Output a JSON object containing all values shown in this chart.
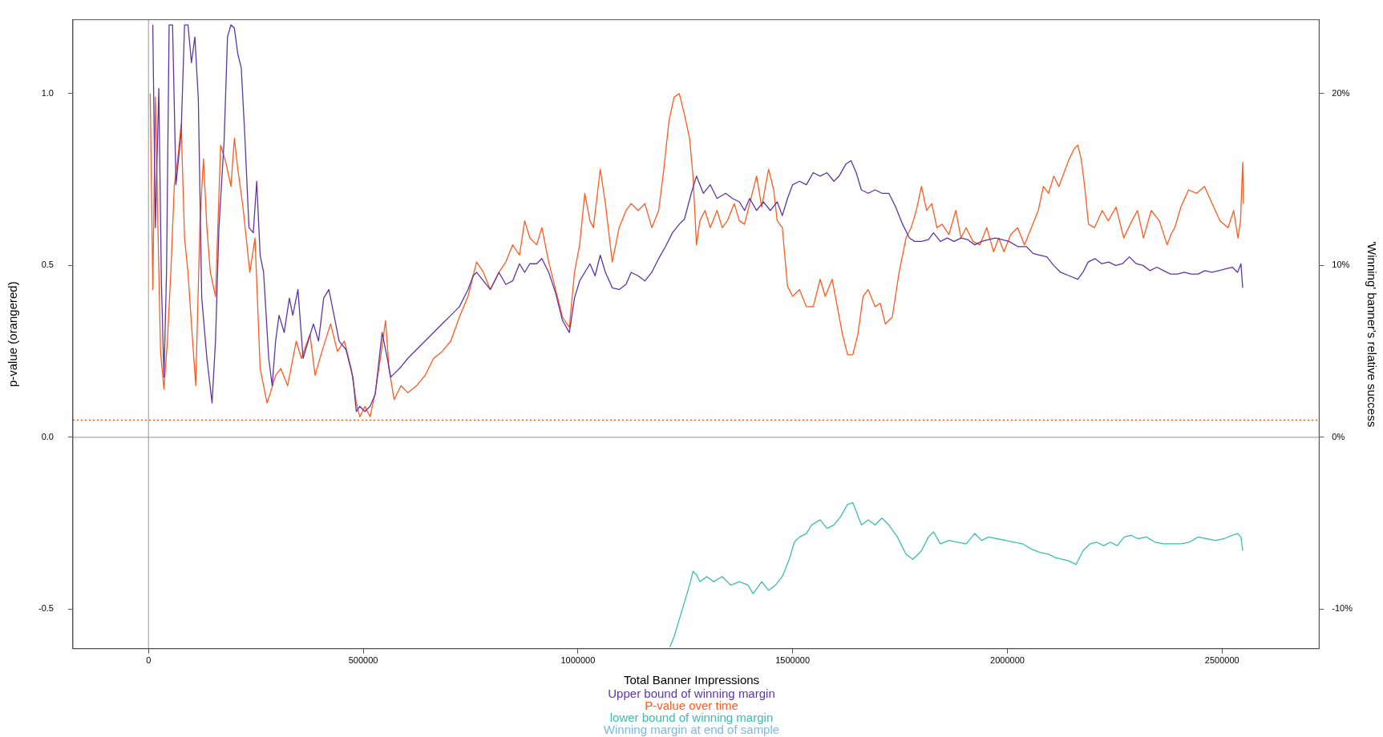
{
  "chart_data": {
    "type": "line",
    "xlabel": "Total Banner Impressions",
    "ylabel": "p-value (orangered)",
    "y2label": "'Winning' banner's relative success",
    "xlim": [
      -176000,
      2726000
    ],
    "xticks": [
      0,
      500000,
      1000000,
      1500000,
      2000000,
      2500000
    ],
    "ylim": [
      -0.615,
      1.215
    ],
    "yticks": [
      {
        "value": -0.5,
        "label": "-0.5"
      },
      {
        "value": 0,
        "label": "0.0"
      },
      {
        "value": 0.5,
        "label": "0.5"
      },
      {
        "value": 1,
        "label": "1.0"
      }
    ],
    "y2lim": [
      -12.3,
      24.3
    ],
    "y2ticks": [
      {
        "value": -10,
        "label": "-10%"
      },
      {
        "value": 0,
        "label": "0%"
      },
      {
        "value": 10,
        "label": "10%"
      },
      {
        "value": 20,
        "label": "20%"
      }
    ],
    "grid": false,
    "legend": "bottom",
    "marker": "none",
    "line_style": "solid",
    "ref_lines": [
      {
        "axis": "y",
        "value": 0.05,
        "color": "#ff4500",
        "line_style": "dotted"
      },
      {
        "axis": "x",
        "value": 0,
        "color": "#a8a8a8",
        "line_style": "solid"
      },
      {
        "axis": "y",
        "value": 0,
        "color": "#a8a8a8",
        "line_style": "solid"
      }
    ],
    "series": [
      {
        "name": "Upper bound of winning margin",
        "color": "#5e35a8",
        "axis": "y2",
        "x": [
          10000,
          16000,
          24000,
          30000,
          36000,
          42000,
          48000,
          56000,
          64000,
          76000,
          84000,
          92000,
          100000,
          108000,
          116000,
          124000,
          136000,
          148000,
          156000,
          164000,
          176000,
          184000,
          192000,
          200000,
          208000,
          216000,
          224000,
          234000,
          244000,
          252000,
          260000,
          268000,
          280000,
          288000,
          296000,
          304000,
          316000,
          328000,
          336000,
          348000,
          360000,
          372000,
          384000,
          396000,
          408000,
          420000,
          432000,
          444000,
          460000,
          476000,
          484000,
          492000,
          504000,
          516000,
          528000,
          544000,
          556000,
          564000,
          576000,
          588000,
          604000,
          624000,
          644000,
          664000,
          684000,
          704000,
          724000,
          744000,
          756000,
          764000,
          780000,
          796000,
          816000,
          832000,
          848000,
          864000,
          876000,
          888000,
          904000,
          916000,
          932000,
          948000,
          964000,
          980000,
          992000,
          1004000,
          1016000,
          1028000,
          1040000,
          1052000,
          1064000,
          1080000,
          1096000,
          1112000,
          1124000,
          1140000,
          1156000,
          1172000,
          1188000,
          1204000,
          1220000,
          1236000,
          1248000,
          1264000,
          1276000,
          1292000,
          1308000,
          1324000,
          1344000,
          1360000,
          1376000,
          1388000,
          1400000,
          1416000,
          1432000,
          1448000,
          1464000,
          1476000,
          1488000,
          1500000,
          1516000,
          1532000,
          1548000,
          1564000,
          1580000,
          1596000,
          1608000,
          1624000,
          1636000,
          1648000,
          1660000,
          1676000,
          1692000,
          1708000,
          1724000,
          1740000,
          1756000,
          1772000,
          1784000,
          1800000,
          1816000,
          1828000,
          1844000,
          1860000,
          1876000,
          1892000,
          1908000,
          1924000,
          1940000,
          1956000,
          1972000,
          1988000,
          2004000,
          2024000,
          2044000,
          2060000,
          2076000,
          2092000,
          2108000,
          2124000,
          2144000,
          2164000,
          2176000,
          2188000,
          2204000,
          2220000,
          2236000,
          2252000,
          2268000,
          2284000,
          2300000,
          2316000,
          2332000,
          2348000,
          2364000,
          2380000,
          2396000,
          2412000,
          2428000,
          2444000,
          2460000,
          2476000,
          2492000,
          2508000,
          2524000,
          2536000,
          2544000,
          2548000
        ],
        "values": [
          24,
          12.2,
          20.3,
          9.1,
          3.5,
          9.6,
          24,
          24,
          14.7,
          17.7,
          24,
          24,
          21.8,
          23.3,
          19.7,
          8.1,
          4.6,
          2.0,
          5.6,
          12.2,
          17.2,
          23.3,
          24,
          23.8,
          22.3,
          21.5,
          17.7,
          12.2,
          11.9,
          14.9,
          10.6,
          9.6,
          4.6,
          3.0,
          5.6,
          7.1,
          6.1,
          8.1,
          7.1,
          8.6,
          4.6,
          5.6,
          6.6,
          5.6,
          8.1,
          8.6,
          7.1,
          5.6,
          5.1,
          3.5,
          1.5,
          1.8,
          1.5,
          1.8,
          2.5,
          6.1,
          4.6,
          3.5,
          3.8,
          4.1,
          4.6,
          5.1,
          5.6,
          6.1,
          6.6,
          7.1,
          7.6,
          8.6,
          9.4,
          9.6,
          9.1,
          8.6,
          9.6,
          8.9,
          9.1,
          10.1,
          9.6,
          10.1,
          10.1,
          10.4,
          9.6,
          8.4,
          6.8,
          6.1,
          8.1,
          9.1,
          9.6,
          10.1,
          9.4,
          10.6,
          9.6,
          8.7,
          8.6,
          8.9,
          9.6,
          9.4,
          9.1,
          9.6,
          10.4,
          11.1,
          11.9,
          12.4,
          12.7,
          14.2,
          15.2,
          14.2,
          14.7,
          13.9,
          14.2,
          13.9,
          13.7,
          13.2,
          13.9,
          13.2,
          13.7,
          13.2,
          13.7,
          12.9,
          13.9,
          14.7,
          14.9,
          14.7,
          15.4,
          15.2,
          15.4,
          14.9,
          15.2,
          15.9,
          16.1,
          15.4,
          14.4,
          14.2,
          14.4,
          14.2,
          14.2,
          13.4,
          12.4,
          11.6,
          11.4,
          11.4,
          11.5,
          11.9,
          11.4,
          11.6,
          11.4,
          11.6,
          11.5,
          11.2,
          11.4,
          11.5,
          11.6,
          11.5,
          11.4,
          11.1,
          11.1,
          10.7,
          10.6,
          10.5,
          10.0,
          9.6,
          9.4,
          9.2,
          9.6,
          10.2,
          10.4,
          10.1,
          10.2,
          10.0,
          10.1,
          10.5,
          10.1,
          10.0,
          9.7,
          9.9,
          9.7,
          9.5,
          9.5,
          9.6,
          9.5,
          9.5,
          9.7,
          9.6,
          9.7,
          9.8,
          9.9,
          9.6,
          10.1,
          8.7
        ]
      },
      {
        "name": "P-value over time",
        "color": "#ff5a1f",
        "x": [
          4000,
          10000,
          16000,
          22000,
          28000,
          36000,
          44000,
          52000,
          60000,
          68000,
          76000,
          84000,
          92000,
          100000,
          110000,
          120000,
          128000,
          136000,
          144000,
          156000,
          168000,
          180000,
          192000,
          200000,
          208000,
          220000,
          236000,
          248000,
          260000,
          276000,
          284000,
          296000,
          308000,
          324000,
          344000,
          356000,
          376000,
          388000,
          404000,
          424000,
          440000,
          456000,
          472000,
          484000,
          492000,
          504000,
          516000,
          528000,
          540000,
          552000,
          560000,
          572000,
          588000,
          604000,
          624000,
          644000,
          664000,
          684000,
          704000,
          724000,
          744000,
          756000,
          764000,
          780000,
          796000,
          816000,
          832000,
          848000,
          864000,
          876000,
          888000,
          904000,
          916000,
          932000,
          948000,
          964000,
          980000,
          992000,
          1004000,
          1016000,
          1028000,
          1036000,
          1052000,
          1064000,
          1080000,
          1096000,
          1112000,
          1124000,
          1140000,
          1156000,
          1172000,
          1188000,
          1200000,
          1212000,
          1224000,
          1236000,
          1248000,
          1260000,
          1268000,
          1276000,
          1284000,
          1296000,
          1308000,
          1324000,
          1336000,
          1348000,
          1364000,
          1376000,
          1388000,
          1400000,
          1416000,
          1428000,
          1444000,
          1456000,
          1464000,
          1476000,
          1488000,
          1500000,
          1516000,
          1532000,
          1548000,
          1564000,
          1576000,
          1592000,
          1604000,
          1616000,
          1628000,
          1640000,
          1652000,
          1664000,
          1676000,
          1692000,
          1704000,
          1716000,
          1732000,
          1748000,
          1764000,
          1776000,
          1788000,
          1800000,
          1812000,
          1824000,
          1836000,
          1848000,
          1864000,
          1880000,
          1892000,
          1904000,
          1920000,
          1936000,
          1952000,
          1968000,
          1980000,
          1992000,
          2008000,
          2024000,
          2040000,
          2056000,
          2072000,
          2084000,
          2096000,
          2108000,
          2120000,
          2132000,
          2144000,
          2156000,
          2164000,
          2172000,
          2180000,
          2189000,
          2203000,
          2221000,
          2235000,
          2253000,
          2271000,
          2290000,
          2303000,
          2317000,
          2335000,
          2354000,
          2372000,
          2381000,
          2390000,
          2404000,
          2422000,
          2441000,
          2459000,
          2477000,
          2495000,
          2514000,
          2527000,
          2537000,
          2543000,
          2548000,
          2550000
        ],
        "values": [
          1.0,
          0.43,
          0.99,
          0.61,
          0.25,
          0.14,
          0.28,
          0.48,
          0.73,
          0.81,
          0.91,
          0.58,
          0.48,
          0.33,
          0.15,
          0.63,
          0.81,
          0.61,
          0.48,
          0.41,
          0.85,
          0.8,
          0.73,
          0.87,
          0.78,
          0.67,
          0.48,
          0.58,
          0.2,
          0.1,
          0.13,
          0.18,
          0.2,
          0.15,
          0.28,
          0.23,
          0.3,
          0.18,
          0.25,
          0.33,
          0.25,
          0.28,
          0.2,
          0.1,
          0.06,
          0.09,
          0.06,
          0.13,
          0.23,
          0.34,
          0.2,
          0.11,
          0.15,
          0.13,
          0.15,
          0.18,
          0.23,
          0.25,
          0.28,
          0.35,
          0.41,
          0.47,
          0.51,
          0.48,
          0.43,
          0.48,
          0.51,
          0.56,
          0.53,
          0.63,
          0.58,
          0.56,
          0.61,
          0.51,
          0.43,
          0.35,
          0.32,
          0.48,
          0.56,
          0.71,
          0.63,
          0.61,
          0.78,
          0.68,
          0.51,
          0.61,
          0.66,
          0.68,
          0.66,
          0.68,
          0.61,
          0.66,
          0.78,
          0.92,
          0.99,
          1.0,
          0.94,
          0.87,
          0.76,
          0.56,
          0.63,
          0.66,
          0.61,
          0.66,
          0.61,
          0.63,
          0.68,
          0.63,
          0.62,
          0.68,
          0.76,
          0.67,
          0.78,
          0.72,
          0.63,
          0.61,
          0.44,
          0.41,
          0.43,
          0.38,
          0.38,
          0.46,
          0.41,
          0.46,
          0.38,
          0.3,
          0.24,
          0.24,
          0.3,
          0.41,
          0.43,
          0.38,
          0.39,
          0.33,
          0.35,
          0.48,
          0.58,
          0.61,
          0.66,
          0.73,
          0.66,
          0.68,
          0.61,
          0.62,
          0.59,
          0.66,
          0.58,
          0.61,
          0.57,
          0.56,
          0.61,
          0.54,
          0.58,
          0.54,
          0.59,
          0.61,
          0.56,
          0.61,
          0.66,
          0.73,
          0.71,
          0.76,
          0.73,
          0.77,
          0.81,
          0.84,
          0.85,
          0.81,
          0.73,
          0.62,
          0.61,
          0.66,
          0.63,
          0.67,
          0.58,
          0.63,
          0.66,
          0.58,
          0.66,
          0.63,
          0.56,
          0.59,
          0.61,
          0.67,
          0.72,
          0.71,
          0.73,
          0.68,
          0.63,
          0.61,
          0.66,
          0.58,
          0.63,
          0.8,
          0.68
        ]
      },
      {
        "name": "lower bound of winning margin",
        "color": "#3dbdb0",
        "axis": "y2",
        "x": [
          1214000,
          1224000,
          1236000,
          1248000,
          1260000,
          1268000,
          1276000,
          1284000,
          1300000,
          1316000,
          1336000,
          1356000,
          1376000,
          1396000,
          1408000,
          1428000,
          1444000,
          1460000,
          1476000,
          1492000,
          1504000,
          1516000,
          1532000,
          1544000,
          1564000,
          1580000,
          1596000,
          1612000,
          1628000,
          1640000,
          1648000,
          1660000,
          1676000,
          1692000,
          1708000,
          1724000,
          1744000,
          1764000,
          1780000,
          1800000,
          1816000,
          1828000,
          1844000,
          1864000,
          1884000,
          1904000,
          1924000,
          1940000,
          1956000,
          1976000,
          1996000,
          2016000,
          2036000,
          2056000,
          2076000,
          2096000,
          2112000,
          2128000,
          2144000,
          2160000,
          2176000,
          2192000,
          2208000,
          2224000,
          2240000,
          2256000,
          2272000,
          2288000,
          2304000,
          2324000,
          2344000,
          2364000,
          2384000,
          2404000,
          2424000,
          2444000,
          2464000,
          2484000,
          2504000,
          2524000,
          2536000,
          2544000,
          2548000
        ],
        "values": [
          -12.2,
          -11.6,
          -10.6,
          -9.6,
          -8.6,
          -7.8,
          -8.0,
          -8.4,
          -8.1,
          -8.4,
          -8.1,
          -8.6,
          -8.4,
          -8.6,
          -9.1,
          -8.4,
          -8.9,
          -8.6,
          -8.1,
          -7.1,
          -6.1,
          -5.8,
          -5.6,
          -5.1,
          -4.8,
          -5.3,
          -5.1,
          -4.6,
          -3.9,
          -3.8,
          -4.3,
          -5.1,
          -4.8,
          -5.1,
          -4.7,
          -5.1,
          -5.8,
          -6.8,
          -7.1,
          -6.6,
          -5.8,
          -5.5,
          -6.2,
          -6.0,
          -6.1,
          -6.2,
          -5.6,
          -6.0,
          -5.8,
          -5.9,
          -6.0,
          -6.1,
          -6.2,
          -6.5,
          -6.7,
          -6.8,
          -7.0,
          -7.1,
          -7.2,
          -7.4,
          -6.6,
          -6.2,
          -6.1,
          -6.3,
          -6.1,
          -6.3,
          -5.8,
          -5.7,
          -5.9,
          -5.8,
          -6.1,
          -6.2,
          -6.2,
          -6.2,
          -6.1,
          -5.8,
          -5.9,
          -6.0,
          -5.9,
          -5.7,
          -5.6,
          -5.8,
          -6.6
        ]
      },
      {
        "name": "Winning margin at end of sample",
        "color": "#7ab8e6",
        "axis": "y2"
      }
    ]
  }
}
